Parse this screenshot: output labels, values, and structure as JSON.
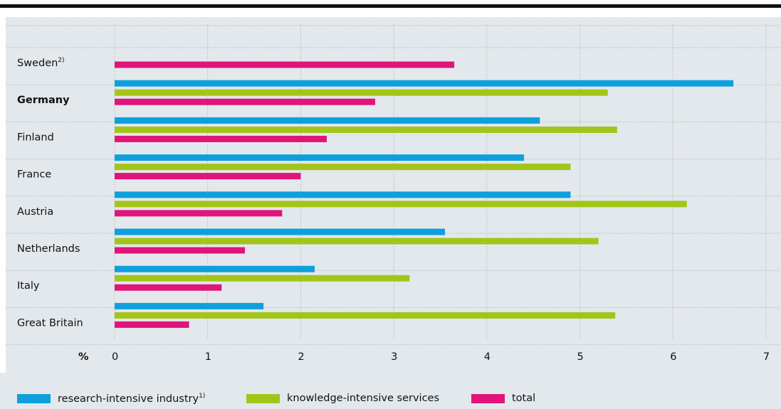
{
  "chart_data": {
    "type": "bar",
    "orientation": "horizontal",
    "unit_label": "%",
    "categories": [
      "Sweden",
      "Germany",
      "Finland",
      "France",
      "Austria",
      "Netherlands",
      "Italy",
      "Great Britain"
    ],
    "category_footnotes": {
      "Sweden": "2)"
    },
    "highlighted_category": "Germany",
    "series": [
      {
        "name": "research-intensive industry",
        "footnote": "1)",
        "color": "#0ea0dc",
        "values": [
          null,
          6.65,
          4.57,
          4.4,
          4.9,
          3.55,
          2.15,
          1.6
        ]
      },
      {
        "name": "knowledge-intensive services",
        "color": "#a3c51a",
        "values": [
          null,
          5.3,
          5.4,
          4.9,
          6.15,
          5.2,
          3.17,
          5.38
        ]
      },
      {
        "name": "total",
        "color": "#e0147a",
        "values": [
          3.65,
          2.8,
          2.28,
          2.0,
          1.8,
          1.4,
          1.15,
          0.8
        ]
      }
    ],
    "x_ticks": [
      0,
      1,
      2,
      3,
      4,
      5,
      6,
      7
    ],
    "xlim": [
      0,
      7
    ],
    "grid": true,
    "legend_position": "bottom"
  },
  "colors": {
    "background_panel": "#e3e8ec",
    "highlight_band": "#e3e8ec",
    "grid": "#aaaaaa",
    "top_rule": "#111111"
  }
}
